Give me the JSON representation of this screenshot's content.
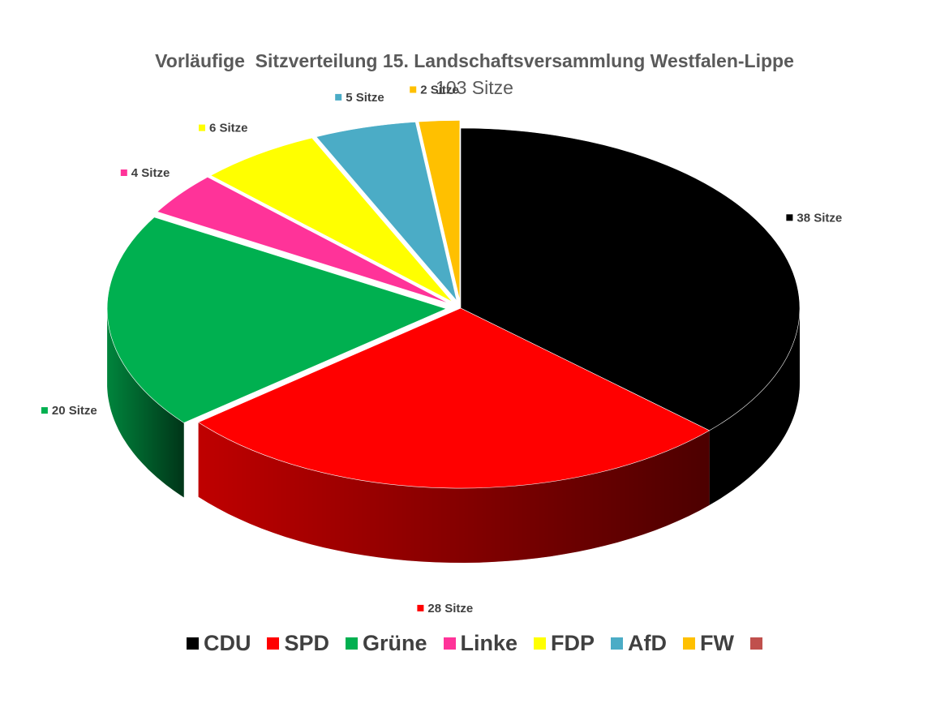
{
  "chart_data": {
    "type": "pie",
    "title": "Vorläufige  Sitzverteilung 15. Landschaftsversammlung Westfalen-Lippe",
    "subtitle": "103 Sitze",
    "categories": [
      "CDU",
      "SPD",
      "Grüne",
      "Linke",
      "FDP",
      "AfD",
      "FW"
    ],
    "values": [
      38,
      28,
      20,
      4,
      6,
      5,
      2
    ],
    "data_labels": [
      "38 Sitze",
      "28 Sitze",
      "20 Sitze",
      "4 Sitze",
      "6 Sitze",
      "5 Sitze",
      "2 Sitze"
    ],
    "colors": [
      "#000000",
      "#ff0000",
      "#00b050",
      "#ff3399",
      "#ffff00",
      "#4bacc6",
      "#ffc000"
    ],
    "legend_position": "bottom",
    "legend_extra_swatch_color": "#c0504d",
    "style": "3d-exploded"
  }
}
